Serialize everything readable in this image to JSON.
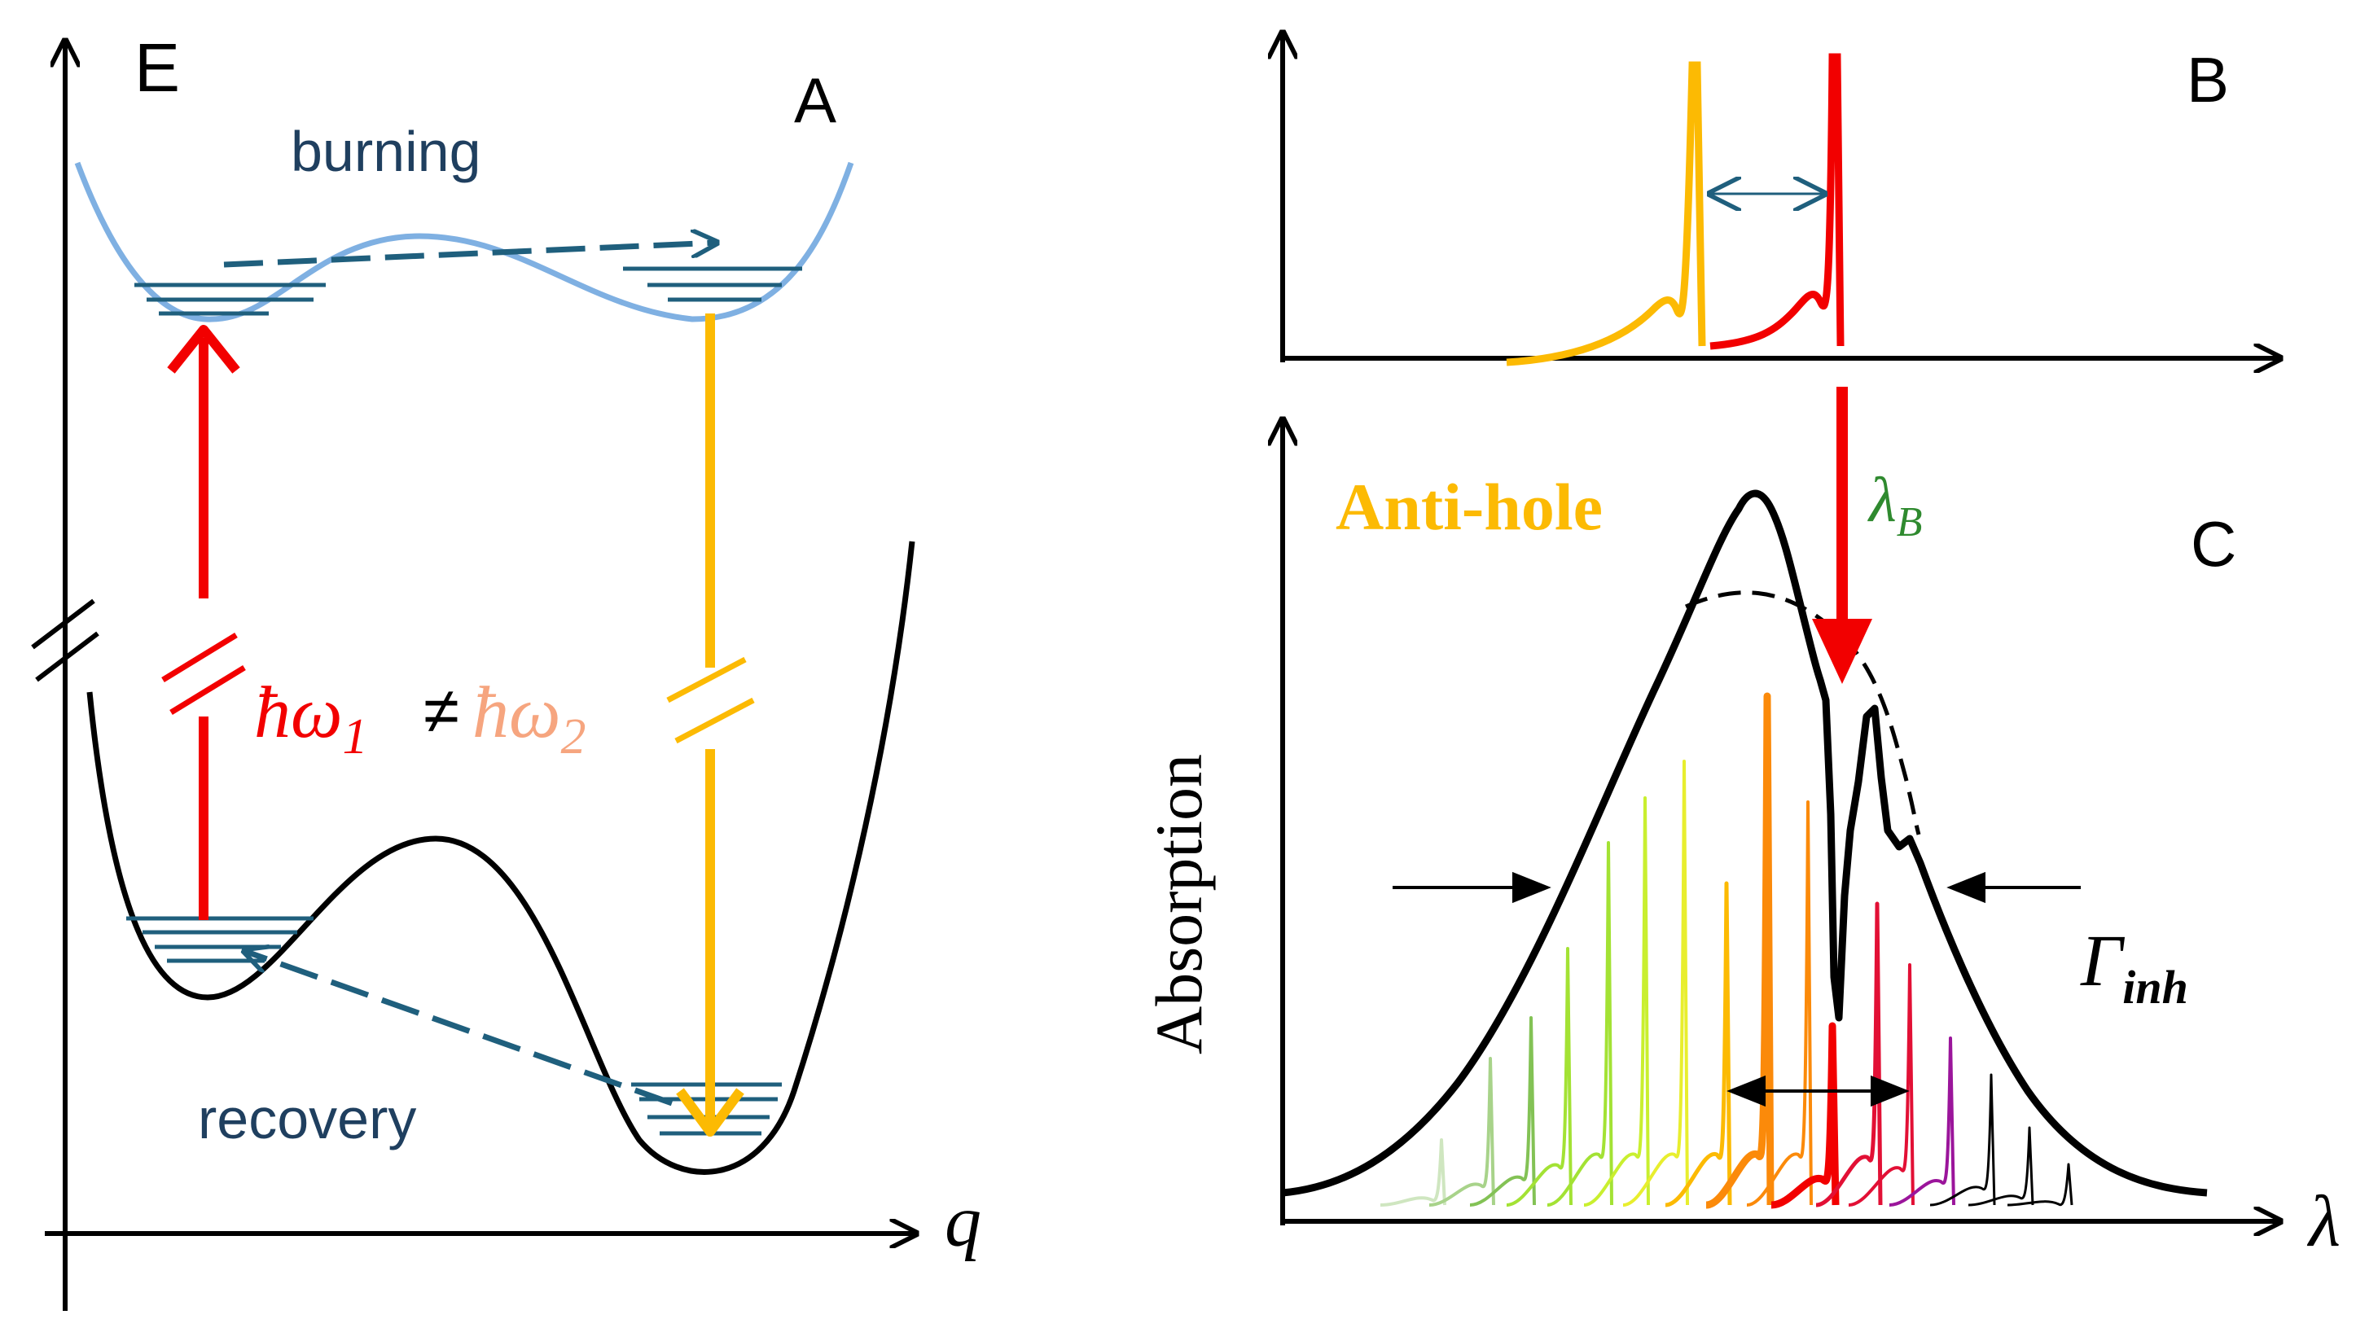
{
  "panel_a": {
    "letter": "A",
    "energy_axis_label": "E",
    "coordinate_axis_label": "q",
    "burning_label": "burning",
    "recovery_label": "recovery",
    "photon_energy_1": "ħω",
    "photon_energy_1_sub": "1",
    "not_equal": "≠",
    "photon_energy_2": "ħω",
    "photon_energy_2_sub": "2"
  },
  "panel_b": {
    "letter": "B"
  },
  "panel_c": {
    "letter": "C",
    "y_axis_label": "Absorption",
    "x_axis_label": "λ",
    "anti_hole_label": "Anti-hole",
    "burn_wavelength": "λ",
    "burn_wavelength_sub": "B",
    "inhomogeneous_width": "Γ",
    "inhomogeneous_width_sub": "inh"
  },
  "colors": {
    "black": "#000000",
    "red": "#f20000",
    "amber": "#fcba03",
    "light_blue": "#7fb0e2",
    "dark_teal": "#1f5f7d",
    "salmon": "#f6a57f",
    "green_label": "#2f8a2f",
    "site_colors": [
      "#cfe6c0",
      "#a8d38a",
      "#83c255",
      "#a3e234",
      "#c9ef2f",
      "#e8ee2e",
      "#fcba03",
      "#fb8a0a",
      "#f20000",
      "#e21035",
      "#9b159b",
      "#000000"
    ]
  }
}
